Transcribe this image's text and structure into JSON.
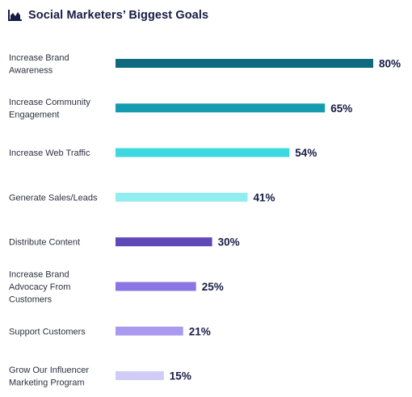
{
  "chart_data": {
    "type": "bar",
    "orientation": "horizontal",
    "title": "Social Marketers’ Biggest Goals",
    "title_icon": "area-chart-icon",
    "categories": [
      "Increase Brand Awareness",
      "Increase Community Engagement",
      "Increase Web Traffic",
      "Generate Sales/Leads",
      "Distribute Content",
      "Increase Brand Advocacy From Customers",
      "Support Customers",
      "Grow Our Influencer Marketing Program"
    ],
    "category_lines": [
      [
        "Increase Brand",
        "Awareness"
      ],
      [
        "Increase Community",
        "Engagement"
      ],
      [
        "Increase Web Traffic"
      ],
      [
        "Generate Sales/Leads"
      ],
      [
        "Distribute Content"
      ],
      [
        "Increase Brand",
        "Advocacy From",
        "Customers"
      ],
      [
        "Support Customers"
      ],
      [
        "Grow Our Influencer",
        "Marketing Program"
      ]
    ],
    "values": [
      80,
      65,
      54,
      41,
      30,
      25,
      21,
      15
    ],
    "value_labels": [
      "80%",
      "65%",
      "54%",
      "41%",
      "30%",
      "25%",
      "21%",
      "15%"
    ],
    "colors": [
      "#0e6a7f",
      "#139caf",
      "#3ed8e0",
      "#92edf1",
      "#6148b8",
      "#8b75e5",
      "#a99af0",
      "#d1cbf7"
    ],
    "xlim": [
      0,
      80
    ],
    "grid": false,
    "legend": "none"
  }
}
